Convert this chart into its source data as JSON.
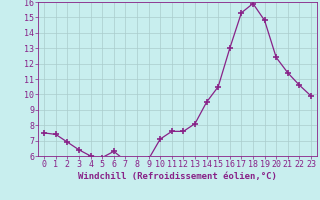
{
  "x": [
    0,
    1,
    2,
    3,
    4,
    5,
    6,
    7,
    8,
    9,
    10,
    11,
    12,
    13,
    14,
    15,
    16,
    17,
    18,
    19,
    20,
    21,
    22,
    23
  ],
  "y": [
    7.5,
    7.4,
    6.9,
    6.4,
    6.0,
    5.9,
    6.3,
    5.7,
    5.7,
    5.8,
    7.1,
    7.6,
    7.6,
    8.1,
    9.5,
    10.5,
    13.0,
    15.3,
    15.9,
    14.8,
    12.4,
    11.4,
    10.6,
    9.9
  ],
  "line_color": "#882288",
  "marker": "+",
  "marker_size": 4,
  "marker_lw": 1.2,
  "bg_color": "#c8eeee",
  "grid_color": "#aacccc",
  "xlabel": "Windchill (Refroidissement éolien,°C)",
  "ylim": [
    6,
    16
  ],
  "xlim_min": -0.5,
  "xlim_max": 23.5,
  "yticks": [
    6,
    7,
    8,
    9,
    10,
    11,
    12,
    13,
    14,
    15,
    16
  ],
  "xticks": [
    0,
    1,
    2,
    3,
    4,
    5,
    6,
    7,
    8,
    9,
    10,
    11,
    12,
    13,
    14,
    15,
    16,
    17,
    18,
    19,
    20,
    21,
    22,
    23
  ],
  "tick_color": "#882288",
  "xlabel_fontsize": 6.5,
  "tick_fontsize": 6.0,
  "linewidth": 0.9
}
